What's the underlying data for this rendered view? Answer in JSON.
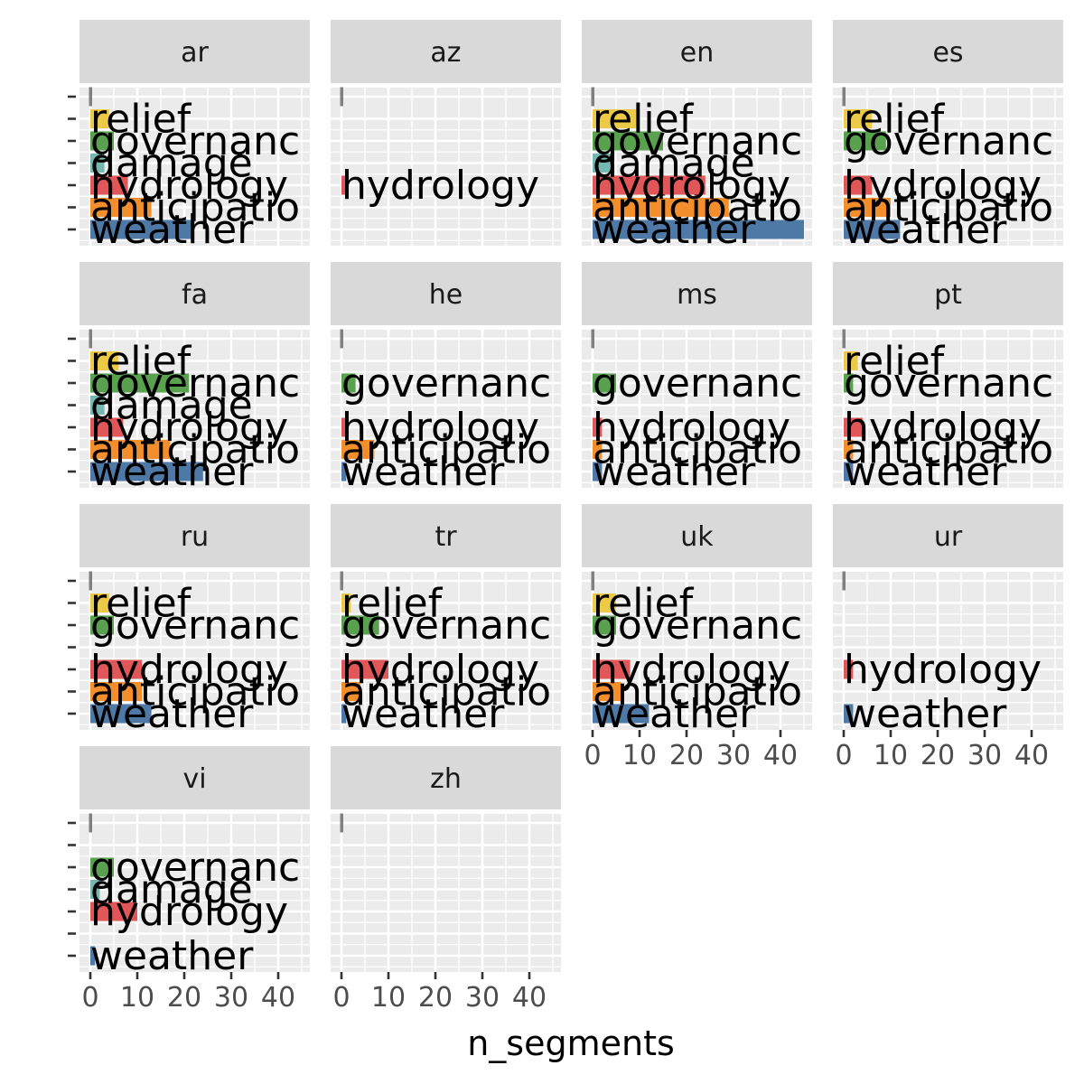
{
  "chart_data": {
    "type": "bar",
    "orientation": "horizontal",
    "faceted": true,
    "xlabel": "n_segments",
    "ylabel": "",
    "xlim": [
      0,
      47
    ],
    "x_ticks": [
      0,
      10,
      20,
      30,
      40
    ],
    "grid": true,
    "legend": "none",
    "categories": [
      "weather",
      "anticipation",
      "hydrology",
      "damage",
      "governance",
      "relief"
    ],
    "category_labels": {
      "weather": "weather",
      "anticipation": "anticipatio",
      "hydrology": "hydrology",
      "damage": "damage",
      "governance": "governanc",
      "relief": "relief"
    },
    "colors": {
      "weather": "#4e79a7",
      "anticipation": "#f28e2b",
      "hydrology": "#e15759",
      "damage": "#76b7b2",
      "governance": "#59a14f",
      "relief": "#edc948",
      "stub": "#808080"
    },
    "panels": [
      {
        "name": "ar",
        "values": {
          "weather": 22,
          "anticipation": 13,
          "hydrology": 8,
          "damage": 3,
          "governance": 5,
          "relief": 4
        }
      },
      {
        "name": "az",
        "values": {
          "hydrology": 1
        }
      },
      {
        "name": "en",
        "values": {
          "weather": 45,
          "anticipation": 29,
          "hydrology": 24,
          "damage": 4,
          "governance": 15,
          "relief": 10
        }
      },
      {
        "name": "es",
        "values": {
          "weather": 12,
          "anticipation": 10,
          "hydrology": 6,
          "governance": 9,
          "relief": 6
        }
      },
      {
        "name": "fa",
        "values": {
          "weather": 24,
          "anticipation": 17,
          "hydrology": 7,
          "damage": 3,
          "governance": 21,
          "relief": 6
        }
      },
      {
        "name": "he",
        "values": {
          "weather": 1,
          "anticipation": 7,
          "hydrology": 1,
          "governance": 3
        }
      },
      {
        "name": "ms",
        "values": {
          "weather": 2,
          "anticipation": 2,
          "hydrology": 2,
          "governance": 5
        }
      },
      {
        "name": "pt",
        "values": {
          "weather": 2,
          "anticipation": 2,
          "hydrology": 4,
          "governance": 2,
          "relief": 3
        }
      },
      {
        "name": "ru",
        "values": {
          "weather": 13,
          "anticipation": 11,
          "hydrology": 11,
          "governance": 5,
          "relief": 4
        }
      },
      {
        "name": "tr",
        "values": {
          "weather": 1,
          "anticipation": 4,
          "hydrology": 10,
          "governance": 8,
          "relief": 2
        }
      },
      {
        "name": "uk",
        "values": {
          "weather": 12,
          "anticipation": 6,
          "hydrology": 8,
          "governance": 5,
          "relief": 5
        }
      },
      {
        "name": "ur",
        "values": {
          "weather": 2,
          "hydrology": 2
        }
      },
      {
        "name": "vi",
        "values": {
          "weather": 1,
          "hydrology": 10,
          "damage": 2,
          "governance": 5
        }
      },
      {
        "name": "zh",
        "values": {}
      }
    ]
  }
}
